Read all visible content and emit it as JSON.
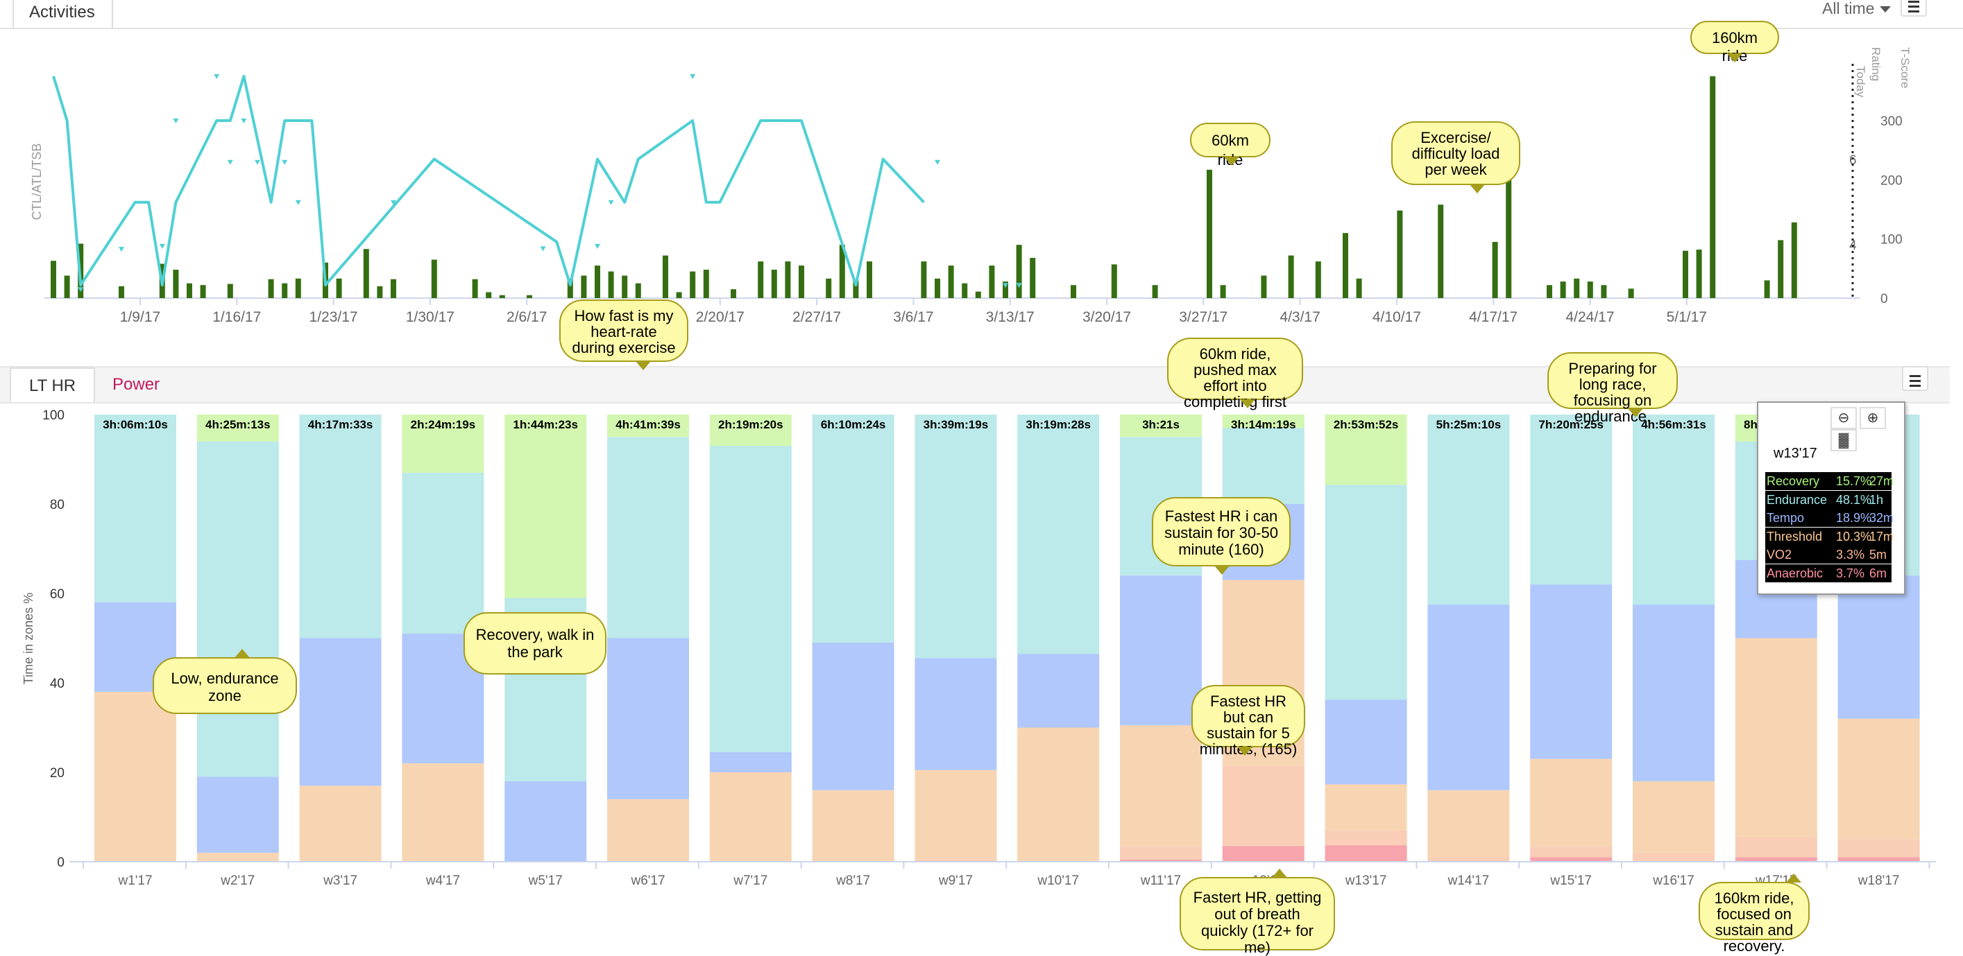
{
  "header": {
    "tab": "Activities",
    "range": "All time"
  },
  "bottom_tabs": [
    "LT HR",
    "Power"
  ],
  "chart_data": [
    {
      "type": "bar+line",
      "ylabel": "CTL/ATL/TSB",
      "right_axis_labels": [
        "T-Score",
        "Rating",
        "Today"
      ],
      "x_ticks": [
        "1/9/17",
        "1/16/17",
        "1/23/17",
        "1/30/17",
        "2/6/17",
        "2/13/17",
        "2/20/17",
        "2/27/17",
        "3/6/17",
        "3/13/17",
        "3/20/17",
        "3/27/17",
        "4/3/17",
        "4/10/17",
        "4/17/17",
        "4/24/17",
        "5/1/17"
      ],
      "yticks_tscore": [
        "300",
        "200",
        "100",
        "0"
      ],
      "yticks_rating": [
        "6",
        "4"
      ],
      "ylim": [
        0,
        380
      ],
      "x_range_days": [
        0,
        125
      ],
      "colors": {
        "bars": "#356e12",
        "line": "#4fd0d4",
        "markers": "#4fd0d4"
      },
      "bars": [
        [
          0,
          63
        ],
        [
          1,
          38
        ],
        [
          2,
          92
        ],
        [
          5,
          20
        ],
        [
          8,
          58
        ],
        [
          9,
          48
        ],
        [
          10,
          25
        ],
        [
          11,
          22
        ],
        [
          13,
          24
        ],
        [
          16,
          32
        ],
        [
          17,
          25
        ],
        [
          18,
          33
        ],
        [
          20,
          60
        ],
        [
          21,
          33
        ],
        [
          23,
          83
        ],
        [
          24,
          20
        ],
        [
          25,
          32
        ],
        [
          28,
          65
        ],
        [
          31,
          32
        ],
        [
          32,
          10
        ],
        [
          33,
          5
        ],
        [
          35,
          5
        ],
        [
          38,
          33
        ],
        [
          39,
          38
        ],
        [
          40,
          55
        ],
        [
          41,
          45
        ],
        [
          42,
          38
        ],
        [
          43,
          25
        ],
        [
          45,
          72
        ],
        [
          46,
          10
        ],
        [
          47,
          45
        ],
        [
          48,
          48
        ],
        [
          50,
          15
        ],
        [
          52,
          62
        ],
        [
          53,
          48
        ],
        [
          54,
          62
        ],
        [
          55,
          55
        ],
        [
          57,
          33
        ],
        [
          58,
          90
        ],
        [
          59,
          30
        ],
        [
          60,
          62
        ],
        [
          64,
          62
        ],
        [
          65,
          33
        ],
        [
          66,
          55
        ],
        [
          67,
          25
        ],
        [
          68,
          11
        ],
        [
          69,
          55
        ],
        [
          70,
          28
        ],
        [
          71,
          90
        ],
        [
          72,
          68
        ],
        [
          75,
          22
        ],
        [
          78,
          57
        ],
        [
          81,
          22
        ],
        [
          85,
          217
        ],
        [
          86,
          22
        ],
        [
          89,
          38
        ],
        [
          91,
          72
        ],
        [
          93,
          62
        ],
        [
          95,
          110
        ],
        [
          96,
          33
        ],
        [
          99,
          148
        ],
        [
          102,
          158
        ],
        [
          106,
          95
        ],
        [
          107,
          205
        ],
        [
          110,
          22
        ],
        [
          111,
          28
        ],
        [
          112,
          33
        ],
        [
          113,
          28
        ],
        [
          114,
          22
        ],
        [
          116,
          16
        ],
        [
          120,
          80
        ],
        [
          121,
          82
        ],
        [
          122,
          375
        ],
        [
          126,
          30
        ],
        [
          127,
          98
        ],
        [
          128,
          128
        ]
      ],
      "line": [
        [
          0,
          375
        ],
        [
          1,
          300
        ],
        [
          2,
          22
        ],
        [
          6,
          162
        ],
        [
          7,
          162
        ],
        [
          8,
          22
        ],
        [
          9,
          162
        ],
        [
          12,
          300
        ],
        [
          13,
          300
        ],
        [
          14,
          375
        ],
        [
          16,
          162
        ],
        [
          17,
          300
        ],
        [
          19,
          300
        ],
        [
          20,
          22
        ],
        [
          28,
          235
        ],
        [
          37,
          95
        ],
        [
          38,
          22
        ],
        [
          40,
          235
        ],
        [
          42,
          162
        ],
        [
          43,
          235
        ],
        [
          47,
          300
        ],
        [
          48,
          162
        ],
        [
          49,
          162
        ],
        [
          52,
          300
        ],
        [
          55,
          300
        ],
        [
          59,
          22
        ],
        [
          61,
          235
        ],
        [
          64,
          162
        ]
      ],
      "markers": [
        [
          2,
          15
        ],
        [
          5,
          83
        ],
        [
          8,
          88
        ],
        [
          9,
          300
        ],
        [
          12,
          375
        ],
        [
          13,
          230
        ],
        [
          14,
          300
        ],
        [
          15,
          230
        ],
        [
          17,
          230
        ],
        [
          18,
          162
        ],
        [
          25,
          162
        ],
        [
          36,
          84
        ],
        [
          40,
          88
        ],
        [
          41,
          162
        ],
        [
          47,
          375
        ],
        [
          65,
          230
        ],
        [
          70,
          22
        ],
        [
          71,
          22
        ]
      ]
    },
    {
      "type": "stacked-bar",
      "ylabel": "Time in zones %",
      "yticks": [
        "100",
        "80",
        "60",
        "40",
        "20",
        "0"
      ],
      "ylim": [
        0,
        100
      ],
      "series_colors": {
        "Anaerobic": "#f7a4ac",
        "VO2": "#f9cdb6",
        "Threshold": "#f8d5b2",
        "Tempo": "#b0c8fc",
        "Endurance": "#bce9e9",
        "Recovery": "#d3f7b0"
      },
      "categories": [
        "w1'17",
        "w2'17",
        "w3'17",
        "w4'17",
        "w5'17",
        "w6'17",
        "w7'17",
        "w8'17",
        "w9'17",
        "w10'17",
        "w11'17",
        "w12'17",
        "w13'17",
        "w14'17",
        "w15'17",
        "w16'17",
        "w17'17",
        "w18'17"
      ],
      "durations": [
        "3h:06m:10s",
        "4h:25m:13s",
        "4h:17m:33s",
        "2h:24m:19s",
        "1h:44m:23s",
        "4h:41m:39s",
        "2h:19m:20s",
        "6h:10m:24s",
        "3h:39m:19s",
        "3h:19m:28s",
        "3h:21s",
        "3h:14m:19s",
        "2h:53m:52s",
        "5h:25m:10s",
        "7h:20m:25s",
        "4h:56m:31s",
        "8h:54m:10s",
        ""
      ],
      "stacks": [
        {
          "Anaerobic": 0,
          "VO2": 0,
          "Threshold": 38,
          "Tempo": 20,
          "Endurance": 42,
          "Recovery": 0
        },
        {
          "Anaerobic": 0,
          "VO2": 0,
          "Threshold": 2,
          "Tempo": 17,
          "Endurance": 75,
          "Recovery": 6
        },
        {
          "Anaerobic": 0,
          "VO2": 0,
          "Threshold": 17,
          "Tempo": 33,
          "Endurance": 50,
          "Recovery": 0
        },
        {
          "Anaerobic": 0,
          "VO2": 0,
          "Threshold": 22,
          "Tempo": 29,
          "Endurance": 36,
          "Recovery": 13
        },
        {
          "Anaerobic": 0,
          "VO2": 0,
          "Threshold": 0,
          "Tempo": 18,
          "Endurance": 41,
          "Recovery": 41
        },
        {
          "Anaerobic": 0,
          "VO2": 0,
          "Threshold": 14,
          "Tempo": 36,
          "Endurance": 45,
          "Recovery": 5
        },
        {
          "Anaerobic": 0,
          "VO2": 0,
          "Threshold": 20,
          "Tempo": 4.5,
          "Endurance": 68.5,
          "Recovery": 7
        },
        {
          "Anaerobic": 0,
          "VO2": 0,
          "Threshold": 16,
          "Tempo": 33,
          "Endurance": 51,
          "Recovery": 0
        },
        {
          "Anaerobic": 0,
          "VO2": 0.5,
          "Threshold": 20,
          "Tempo": 25,
          "Endurance": 54.5,
          "Recovery": 0
        },
        {
          "Anaerobic": 0,
          "VO2": 0,
          "Threshold": 30,
          "Tempo": 16.5,
          "Endurance": 53.5,
          "Recovery": 0
        },
        {
          "Anaerobic": 0.5,
          "VO2": 3,
          "Threshold": 27,
          "Tempo": 33.5,
          "Endurance": 31,
          "Recovery": 5
        },
        {
          "Anaerobic": 3.5,
          "VO2": 18,
          "Threshold": 41.5,
          "Tempo": 17,
          "Endurance": 17,
          "Recovery": 3
        },
        {
          "Anaerobic": 3.7,
          "VO2": 3.3,
          "Threshold": 10.3,
          "Tempo": 18.9,
          "Endurance": 48.1,
          "Recovery": 15.7
        },
        {
          "Anaerobic": 0,
          "VO2": 1,
          "Threshold": 15,
          "Tempo": 41.5,
          "Endurance": 42.5,
          "Recovery": 0
        },
        {
          "Anaerobic": 1,
          "VO2": 2.5,
          "Threshold": 19.5,
          "Tempo": 39,
          "Endurance": 38,
          "Recovery": 0
        },
        {
          "Anaerobic": 0,
          "VO2": 2,
          "Threshold": 16,
          "Tempo": 39.5,
          "Endurance": 42.5,
          "Recovery": 0
        },
        {
          "Anaerobic": 1,
          "VO2": 4.5,
          "Threshold": 44.5,
          "Tempo": 17.5,
          "Endurance": 26.5,
          "Recovery": 6
        },
        {
          "Anaerobic": 1,
          "VO2": 4,
          "Threshold": 27,
          "Tempo": 32,
          "Endurance": 36,
          "Recovery": 0
        }
      ]
    }
  ],
  "annotations": {
    "ride60": "60km ride",
    "ride160": "160km ride",
    "exercise": "Excercise/ difficulty load per week",
    "howfast": "How fast is my heart-rate during exercise",
    "low": "Low, endurance zone",
    "recovery": "Recovery, walk in the park",
    "pushed": "60km ride, pushed max effort into completing first",
    "fastest160": "Fastest HR i can sustain for 30-50 minute (160)",
    "fastest165": "Fastest HR but can sustain for 5 minutes, (165)",
    "fastert": "Fastert HR, getting out of breath quickly (172+ for me)",
    "preparing": "Preparing for long race, focusing on endurance.",
    "ride160b": "160km ride, focused on sustain and recovery."
  },
  "tooltip": {
    "title": "w13'17",
    "rows": [
      {
        "name": "Recovery",
        "pct": "15.7%",
        "time": "27m",
        "color": "#a6f27a"
      },
      {
        "name": "Endurance",
        "pct": "48.1%",
        "time": "1h",
        "color": "#9fe9ec"
      },
      {
        "name": "Tempo",
        "pct": "18.9%",
        "time": "32m",
        "color": "#9ab6ff"
      },
      {
        "name": "Threshold",
        "pct": "10.3%",
        "time": "17m",
        "color": "#ffc98f"
      },
      {
        "name": "VO2",
        "pct": "3.3%",
        "time": "5m",
        "color": "#ffb89a"
      },
      {
        "name": "Anaerobic",
        "pct": "3.7%",
        "time": "6m",
        "color": "#ff8fa0"
      }
    ]
  }
}
